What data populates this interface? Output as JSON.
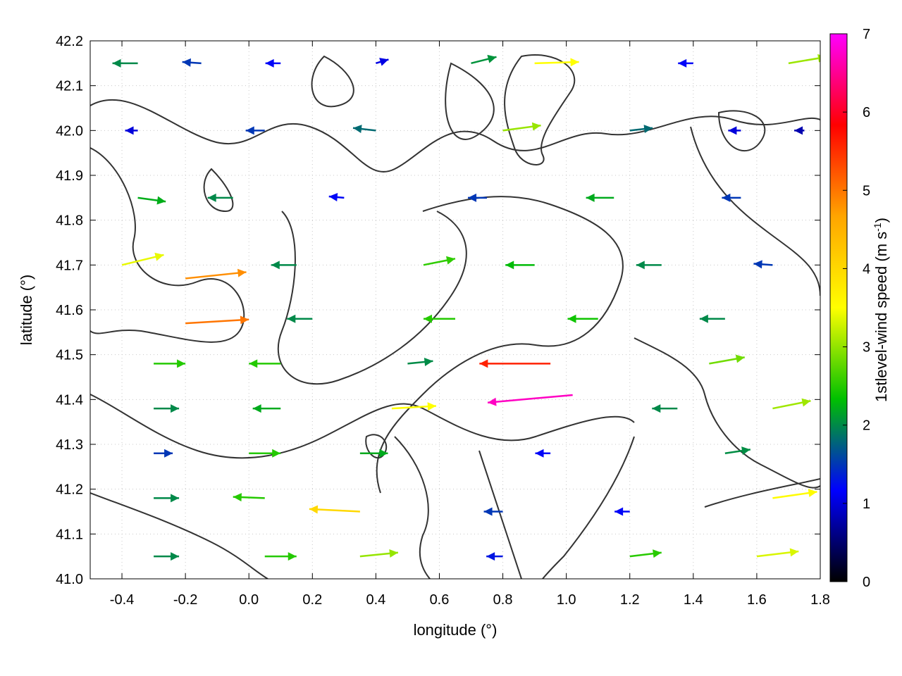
{
  "chart_data": {
    "type": "vector-field",
    "title": "",
    "xlabel": "longitude (°)",
    "ylabel": "latitude (°)",
    "xlim": [
      -0.5,
      1.8
    ],
    "ylim": [
      41.0,
      42.2
    ],
    "xticks": [
      -0.4,
      -0.2,
      0.0,
      0.2,
      0.4,
      0.6,
      0.8,
      1.0,
      1.2,
      1.4,
      1.6,
      1.8
    ],
    "xtick_labels": [
      "-0.4",
      "-0.2",
      "0.0",
      "0.2",
      "0.4",
      "0.6",
      "0.8",
      "1.0",
      "1.2",
      "1.4",
      "1.6",
      "1.8"
    ],
    "yticks": [
      41.0,
      41.1,
      41.2,
      41.3,
      41.4,
      41.5,
      41.6,
      41.7,
      41.8,
      41.9,
      42.0,
      42.1,
      42.2
    ],
    "ytick_labels": [
      "41.0",
      "41.1",
      "41.2",
      "41.3",
      "41.4",
      "41.5",
      "41.6",
      "41.7",
      "41.8",
      "41.9",
      "42.0",
      "42.1",
      "42.2"
    ],
    "grid": true,
    "colorbar": {
      "label": "1stlevel-wind speed (m s",
      "label_exponent": "-1",
      "label_close": ")",
      "range": [
        0,
        7
      ],
      "ticks": [
        0,
        1,
        2,
        3,
        4,
        5,
        6,
        7
      ],
      "tick_labels": [
        "0",
        "1",
        "2",
        "3",
        "4",
        "5",
        "6",
        "7"
      ],
      "colors": [
        "#000000",
        "#0000ff",
        "#00c000",
        "#ffff00",
        "#ffa500",
        "#ff0000",
        "#ff00ff"
      ]
    },
    "contour_color": "#333333",
    "wind_vectors": [
      {
        "lon": -0.35,
        "lat": 42.15,
        "u": -2.0,
        "v": 0.0
      },
      {
        "lon": -0.15,
        "lat": 42.15,
        "u": -1.5,
        "v": 0.1
      },
      {
        "lon": 0.1,
        "lat": 42.15,
        "u": -1.2,
        "v": 0.0
      },
      {
        "lon": 0.4,
        "lat": 42.15,
        "u": 1.0,
        "v": 0.3
      },
      {
        "lon": 0.7,
        "lat": 42.15,
        "u": 2.0,
        "v": 0.5
      },
      {
        "lon": 0.9,
        "lat": 42.15,
        "u": 3.5,
        "v": 0.1
      },
      {
        "lon": 1.4,
        "lat": 42.15,
        "u": -1.2,
        "v": 0.0
      },
      {
        "lon": 1.7,
        "lat": 42.15,
        "u": 3.0,
        "v": 0.5
      },
      {
        "lon": -0.35,
        "lat": 42.0,
        "u": -1.0,
        "v": 0.0
      },
      {
        "lon": 0.05,
        "lat": 42.0,
        "u": -1.5,
        "v": 0.0
      },
      {
        "lon": 0.4,
        "lat": 42.0,
        "u": -1.8,
        "v": 0.2
      },
      {
        "lon": 0.8,
        "lat": 42.0,
        "u": 3.0,
        "v": 0.4
      },
      {
        "lon": 1.2,
        "lat": 42.0,
        "u": 1.8,
        "v": 0.2
      },
      {
        "lon": 1.55,
        "lat": 42.0,
        "u": -1.0,
        "v": 0.0
      },
      {
        "lon": 1.75,
        "lat": 42.0,
        "u": -0.8,
        "v": 0.0
      },
      {
        "lon": -0.35,
        "lat": 41.85,
        "u": 2.2,
        "v": -0.3
      },
      {
        "lon": -0.05,
        "lat": 41.85,
        "u": -2.0,
        "v": 0.0
      },
      {
        "lon": 0.3,
        "lat": 41.85,
        "u": -1.2,
        "v": 0.1
      },
      {
        "lon": 0.75,
        "lat": 41.85,
        "u": -1.5,
        "v": 0.0
      },
      {
        "lon": 1.15,
        "lat": 41.85,
        "u": -2.2,
        "v": 0.0
      },
      {
        "lon": 1.55,
        "lat": 41.85,
        "u": -1.5,
        "v": 0.0
      },
      {
        "lon": -0.4,
        "lat": 41.7,
        "u": 3.3,
        "v": 0.8
      },
      {
        "lon": -0.2,
        "lat": 41.67,
        "u": 4.8,
        "v": 0.5
      },
      {
        "lon": 0.15,
        "lat": 41.7,
        "u": -2.0,
        "v": 0.0
      },
      {
        "lon": 0.55,
        "lat": 41.7,
        "u": 2.5,
        "v": 0.5
      },
      {
        "lon": 0.9,
        "lat": 41.7,
        "u": -2.3,
        "v": 0.0
      },
      {
        "lon": 1.3,
        "lat": 41.7,
        "u": -2.0,
        "v": 0.0
      },
      {
        "lon": 1.65,
        "lat": 41.7,
        "u": -1.5,
        "v": 0.1
      },
      {
        "lon": -0.2,
        "lat": 41.57,
        "u": 5.0,
        "v": 0.3
      },
      {
        "lon": 0.2,
        "lat": 41.58,
        "u": -2.0,
        "v": 0.0
      },
      {
        "lon": 0.65,
        "lat": 41.58,
        "u": -2.5,
        "v": 0.0
      },
      {
        "lon": 1.1,
        "lat": 41.58,
        "u": -2.4,
        "v": 0.0
      },
      {
        "lon": 1.5,
        "lat": 41.58,
        "u": -2.0,
        "v": 0.0
      },
      {
        "lon": -0.3,
        "lat": 41.48,
        "u": 2.5,
        "v": 0.0
      },
      {
        "lon": 0.1,
        "lat": 41.48,
        "u": -2.5,
        "v": 0.0
      },
      {
        "lon": 0.5,
        "lat": 41.48,
        "u": 2.0,
        "v": 0.2
      },
      {
        "lon": 0.95,
        "lat": 41.48,
        "u": -5.6,
        "v": 0.0
      },
      {
        "lon": 1.45,
        "lat": 41.48,
        "u": 2.8,
        "v": 0.5
      },
      {
        "lon": 1.02,
        "lat": 41.41,
        "u": -6.7,
        "v": -0.6
      },
      {
        "lon": -0.3,
        "lat": 41.38,
        "u": 2.0,
        "v": 0.0
      },
      {
        "lon": 0.1,
        "lat": 41.38,
        "u": -2.2,
        "v": 0.0
      },
      {
        "lon": 0.45,
        "lat": 41.38,
        "u": 3.5,
        "v": 0.2
      },
      {
        "lon": 1.35,
        "lat": 41.38,
        "u": -2.0,
        "v": 0.0
      },
      {
        "lon": 1.65,
        "lat": 41.38,
        "u": 3.0,
        "v": 0.6
      },
      {
        "lon": -0.3,
        "lat": 41.28,
        "u": 1.5,
        "v": 0.0
      },
      {
        "lon": 0.0,
        "lat": 41.28,
        "u": 2.5,
        "v": 0.0
      },
      {
        "lon": 0.35,
        "lat": 41.28,
        "u": 2.2,
        "v": 0.0
      },
      {
        "lon": 0.95,
        "lat": 41.28,
        "u": -1.2,
        "v": 0.0
      },
      {
        "lon": 1.5,
        "lat": 41.28,
        "u": 2.0,
        "v": 0.3
      },
      {
        "lon": -0.3,
        "lat": 41.18,
        "u": 2.0,
        "v": 0.0
      },
      {
        "lon": 0.05,
        "lat": 41.18,
        "u": -2.5,
        "v": 0.1
      },
      {
        "lon": 0.35,
        "lat": 41.15,
        "u": -4.0,
        "v": 0.2
      },
      {
        "lon": 0.8,
        "lat": 41.15,
        "u": -1.5,
        "v": 0.0
      },
      {
        "lon": 1.2,
        "lat": 41.15,
        "u": -1.2,
        "v": 0.0
      },
      {
        "lon": 1.65,
        "lat": 41.18,
        "u": 3.5,
        "v": 0.5
      },
      {
        "lon": -0.3,
        "lat": 41.05,
        "u": 2.0,
        "v": 0.0
      },
      {
        "lon": 0.05,
        "lat": 41.05,
        "u": 2.5,
        "v": 0.0
      },
      {
        "lon": 0.35,
        "lat": 41.05,
        "u": 3.0,
        "v": 0.3
      },
      {
        "lon": 0.8,
        "lat": 41.05,
        "u": -1.3,
        "v": 0.0
      },
      {
        "lon": 1.2,
        "lat": 41.05,
        "u": 2.5,
        "v": 0.3
      },
      {
        "lon": 1.6,
        "lat": 41.05,
        "u": 3.3,
        "v": 0.4
      }
    ]
  }
}
